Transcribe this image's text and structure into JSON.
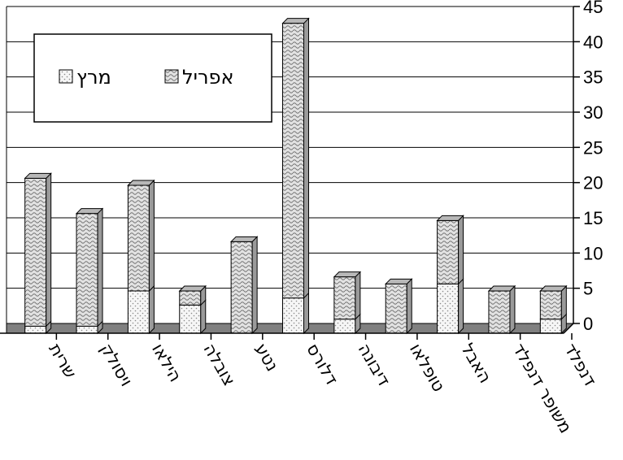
{
  "chart_data": {
    "type": "bar",
    "stacked": true,
    "style": "3d",
    "categories": [
      "שרית",
      "ויסולק",
      "הילאו",
      "צובלה",
      "נטע",
      "דלורס",
      "דיבונה",
      "טופלאו",
      "האבל",
      "משופר דנפלד",
      "דנפלד"
    ],
    "series": [
      {
        "name": "מרץ",
        "values": [
          1,
          1,
          6,
          4,
          0,
          5,
          2,
          0,
          7,
          0,
          2
        ],
        "color": "#f4f4f4"
      },
      {
        "name": "אפריל",
        "values": [
          21,
          16,
          15,
          2,
          13,
          39,
          6,
          7,
          9,
          6,
          4
        ],
        "color": "#cfcfcf"
      }
    ],
    "ylim": [
      0,
      45
    ],
    "yticks": [
      0,
      5,
      10,
      15,
      20,
      25,
      30,
      35,
      40,
      45
    ],
    "y_axis_side": "right",
    "grid": true,
    "legend": {
      "placement": "top-left",
      "entries": [
        "מרץ",
        "אפריל"
      ]
    },
    "floor_color": "#808080"
  }
}
